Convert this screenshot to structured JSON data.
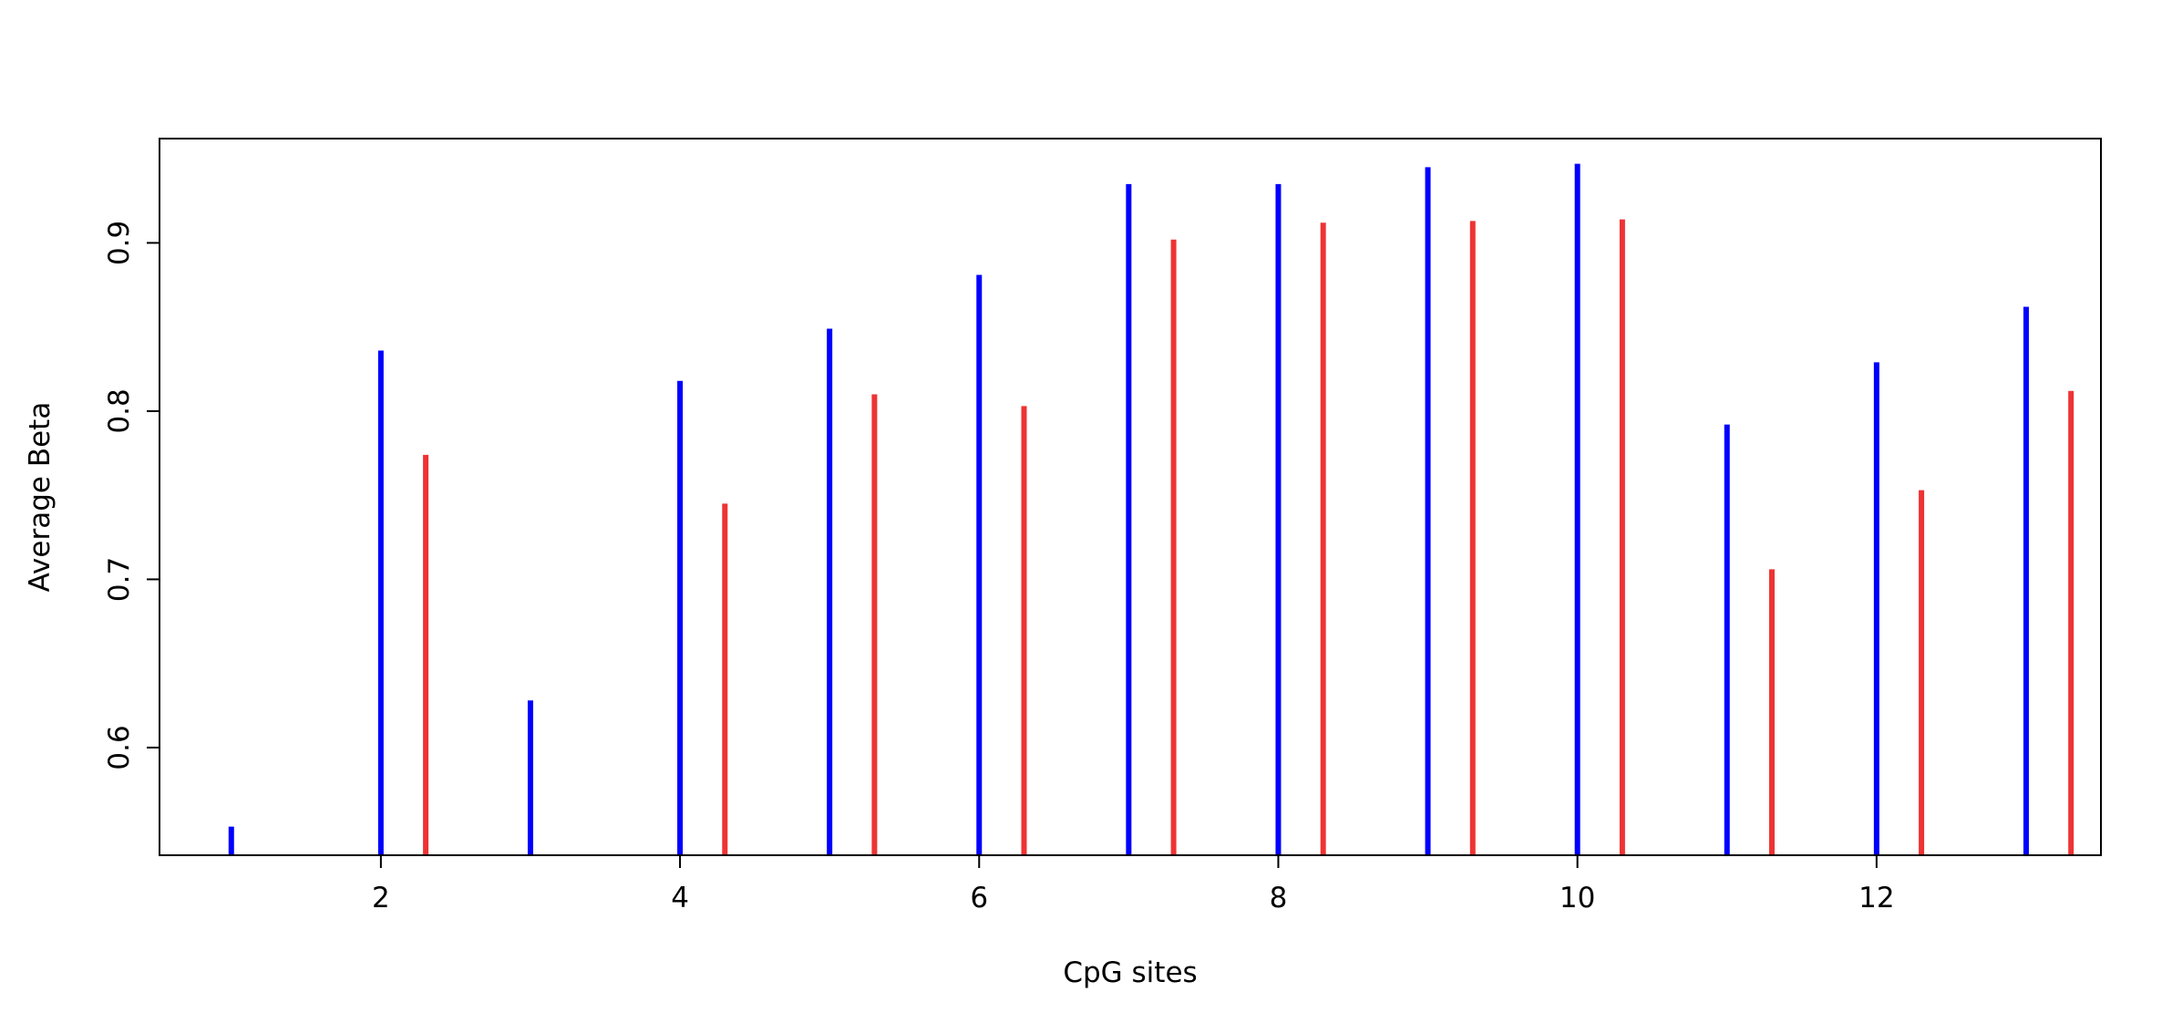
{
  "chart_data": {
    "type": "bar",
    "style": "vertical spikes (histogram-type lines)",
    "title": "",
    "xlabel": "CpG sites",
    "ylabel": "Average Beta",
    "xlim": [
      0.52,
      13.5
    ],
    "ylim": [
      0.536,
      0.962
    ],
    "x_ticks": [
      2,
      4,
      6,
      8,
      10,
      12
    ],
    "y_ticks": [
      0.6,
      0.7,
      0.8,
      0.9
    ],
    "grid": false,
    "legend": null,
    "series": [
      {
        "color": "#0000ff",
        "x": [
          1,
          2,
          3,
          4,
          5,
          6,
          7,
          8,
          9,
          10,
          11,
          12,
          13
        ],
        "values": [
          0.553,
          0.836,
          0.628,
          0.818,
          0.849,
          0.881,
          0.935,
          0.935,
          0.945,
          0.947,
          0.792,
          0.829,
          0.862
        ]
      },
      {
        "color": "#ee3333",
        "x": [
          2.3,
          4.3,
          5.3,
          6.3,
          7.3,
          8.3,
          9.3,
          10.3,
          11.3,
          12.3,
          13.3
        ],
        "values": [
          0.774,
          0.745,
          0.81,
          0.803,
          0.902,
          0.912,
          0.913,
          0.914,
          0.706,
          0.753,
          0.812
        ]
      }
    ]
  }
}
